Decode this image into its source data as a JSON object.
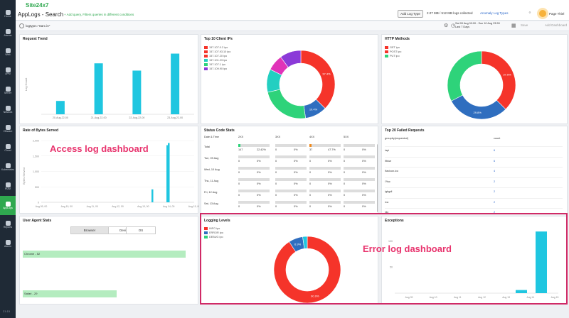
{
  "sidebar": {
    "items": [
      {
        "label": "Home",
        "icon": "home-icon"
      },
      {
        "label": "Alarms",
        "icon": "bell-icon"
      },
      {
        "label": "Web",
        "icon": "globe-icon"
      },
      {
        "label": "APM",
        "icon": "apm-icon"
      },
      {
        "label": "Server",
        "icon": "server-icon"
      },
      {
        "label": "Network",
        "icon": "network-icon"
      },
      {
        "label": "VMware",
        "icon": "vm-icon"
      },
      {
        "label": "Cloud",
        "icon": "cloud-icon"
      },
      {
        "label": "Kubernetes",
        "icon": "kube-icon"
      },
      {
        "label": "RUM",
        "icon": "rum-icon"
      },
      {
        "label": "AppLogs",
        "icon": "logs-icon"
      },
      {
        "label": "Reports",
        "icon": "report-icon"
      },
      {
        "label": "Admin",
        "icon": "admin-icon"
      }
    ],
    "active_index": 10
  },
  "header": {
    "logo": "Site24x7",
    "title": "AppLogs - Search",
    "subtitle": "+ Add query, Filters queries in different conditions",
    "add_log_type": "Add Log Type",
    "collected": "2.07 MB / 512 MB logs collected",
    "anomaly": "Anomaly Log Types",
    "user": "Page Thiel"
  },
  "query": {
    "value": "logtype=\"Sarc.in\"",
    "date_range_line1": "Sat 09 Aug 00:00 - Sun 10 Aug 23:59",
    "date_range_line2": "Last 7 Days",
    "save": "Save",
    "add_to_dashboard": "Add Dashboard"
  },
  "colors": {
    "cyan": "#1fc6e0",
    "red": "#f5342a",
    "blue": "#2f6ebf",
    "green": "#2ed37a",
    "magenta": "#e033b8",
    "teal": "#23cfc1",
    "purple": "#8b3ad8",
    "annot": "#e8336d"
  },
  "panels": {
    "request_trend": {
      "title": "Request Trend",
      "ylabel": "Log Count",
      "chart_data": {
        "type": "bar",
        "categories": [
          "20-Aug-22-00",
          "21-Aug-22-00",
          "22-Aug-22-00",
          "23-Aug-22-00"
        ],
        "values": [
          22,
          84,
          72,
          100
        ],
        "ylim": [
          0,
          110
        ]
      }
    },
    "top_ips": {
      "title": "Top 10 Client IPs",
      "legend": [
        "157.107.0.2 ipo",
        "157.107.93.10 ipo",
        "157.107.20 ipo",
        "157.101.23 ipo",
        "157.107.1 ipo",
        "157.109.90 ipo"
      ],
      "chart_data": {
        "type": "pie",
        "labels": [
          "157.107.0.2 ipo",
          "157.107.93.10 ipo",
          "157.107.20 ipo",
          "157.101.23 ipo",
          "157.107.1 ipo",
          "157.109.90 ipo"
        ],
        "values": [
          37.4,
          10.4,
          23.5,
          11.0,
          7.6,
          10.1
        ],
        "slice_labels": [
          "37.4%",
          "10.4%",
          "",
          "",
          "",
          ""
        ]
      }
    },
    "http_methods": {
      "title": "HTTP Methods",
      "legend": [
        "GET ipo",
        "POST ipo",
        "PUT ipo"
      ],
      "chart_data": {
        "type": "pie",
        "labels": [
          "GET ipo",
          "POST ipo",
          "PUT ipo"
        ],
        "values": [
          37.5,
          29.8,
          32.7
        ],
        "slice_labels": [
          "37.5%",
          "29.8%",
          ""
        ]
      }
    },
    "rate_of_bytes": {
      "title": "Rate of Bytes Served",
      "ylabel": "Bytes Served",
      "yticks": [
        "2,000",
        "1,500",
        "1,000",
        "500",
        "0"
      ],
      "xticks": [
        "Aug 09, 00",
        "Aug 10, 00",
        "Aug 11, 00",
        "Aug 12, 00",
        "Aug 13, 00",
        "Aug 14, 00",
        "Aug 15, 00"
      ],
      "chart_data": {
        "type": "bar",
        "categories": [
          "Aug 14, 00",
          "Aug 15, 00 a",
          "Aug 15, 00 b"
        ],
        "values": [
          420,
          1850,
          1920
        ],
        "ylim": [
          0,
          2000
        ]
      }
    },
    "status_code": {
      "title": "Status Code Stats",
      "headers": [
        "Date & Time",
        "2XX",
        "3XX",
        "4XX",
        "5XX"
      ],
      "rows": [
        {
          "date": "Total",
          "vals": [
            "147",
            "22.42%",
            "0",
            "0%",
            "37",
            "47.7%",
            "0",
            "0%"
          ]
        },
        {
          "date": "Tue, 09 Aug",
          "vals": [
            "0",
            "0%",
            "0",
            "0%",
            "0",
            "0%",
            "0",
            "0%"
          ]
        },
        {
          "date": "Wed, 10 Aug",
          "vals": [
            "0",
            "0%",
            "0",
            "0%",
            "0",
            "0%",
            "0",
            "0%"
          ]
        },
        {
          "date": "Thu, 11 Aug",
          "vals": [
            "0",
            "0%",
            "0",
            "0%",
            "0",
            "0%",
            "0",
            "0%"
          ]
        },
        {
          "date": "Fri, 12 Aug",
          "vals": [
            "0",
            "0%",
            "0",
            "0%",
            "0",
            "0%",
            "0",
            "0%"
          ]
        },
        {
          "date": "Sat, 13 Aug",
          "vals": [
            "0",
            "0%",
            "0",
            "0%",
            "0",
            "0%",
            "0",
            "0%"
          ]
        }
      ]
    },
    "failed_requests": {
      "title": "Top 20 Failed Requests",
      "headers": [
        "groupby(requesturl)",
        "count"
      ],
      "rows": [
        {
          "url": "/api",
          "count": "6"
        },
        {
          "url": "/fblue",
          "count": "6"
        },
        {
          "url": "/favicon.ico",
          "count": "4"
        },
        {
          "url": "/?isc",
          "count": "2"
        },
        {
          "url": "/gbgdl",
          "count": "2"
        },
        {
          "url": "/ca",
          "count": "2"
        },
        {
          "url": "/do",
          "count": "2"
        }
      ]
    },
    "user_agent": {
      "title": "User Agent Stats",
      "tabs": [
        "Browser",
        "Device",
        "OS"
      ],
      "bars": [
        {
          "label": "Chrome - 52",
          "value": 52
        },
        {
          "label": "Safari - 29",
          "value": 29
        }
      ]
    },
    "logging_levels": {
      "title": "Logging Levels",
      "legend": [
        "INFO ipo",
        "ERROR ipo",
        "DEBUG ipo"
      ],
      "chart_data": {
        "type": "pie",
        "labels": [
          "INFO ipo",
          "ERROR ipo",
          "DEBUG ipo"
        ],
        "values": [
          90.9,
          6.9,
          2.2
        ],
        "slice_labels": [
          "90.9%",
          "6.9%",
          ""
        ]
      }
    },
    "exceptions": {
      "title": "Exceptions",
      "yticks": [
        "100",
        "50"
      ],
      "xticks": [
        "Aug 09",
        "Aug 10",
        "Aug 11",
        "Aug 12",
        "Aug 13",
        "Aug 14",
        "Aug 15"
      ],
      "chart_data": {
        "type": "bar",
        "categories": [
          "Aug 14",
          "Aug 15"
        ],
        "values": [
          6,
          118
        ],
        "ylim": [
          0,
          125
        ]
      }
    }
  },
  "annotations": {
    "access": "Access log dashboard",
    "error": "Error log dashboard"
  },
  "footer": "21:15"
}
